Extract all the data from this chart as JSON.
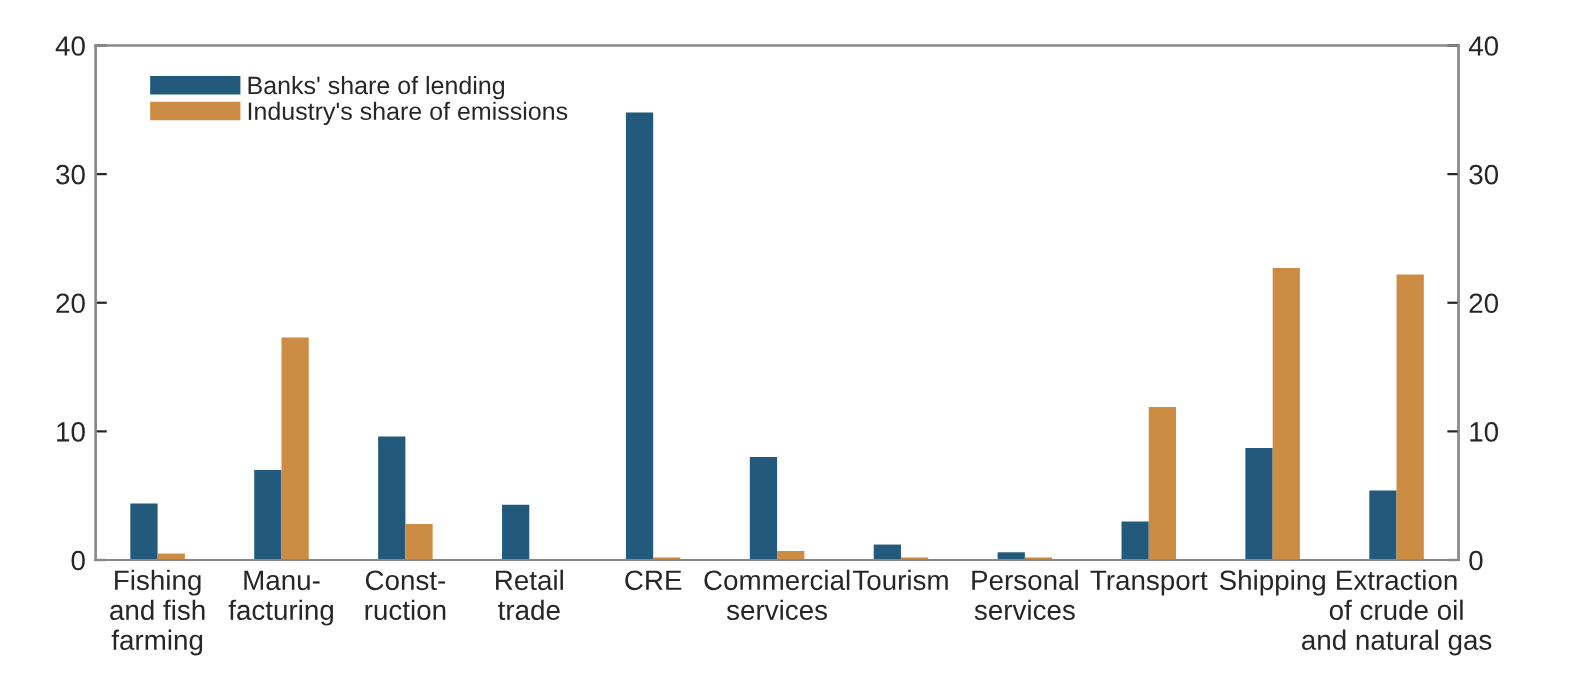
{
  "chart_data": {
    "type": "bar",
    "categories": [
      "Fishing\nand fish\nfarming",
      "Manu-\nfacturing",
      "Const-\nruction",
      "Retail\ntrade",
      "CRE",
      "Commercial\nservices",
      "Tourism",
      "Personal\nservices",
      "Transport",
      "Shipping",
      "Extraction\nof crude oil\nand natural gas"
    ],
    "series": [
      {
        "name": "Banks' share of lending",
        "color": "#235a7b",
        "values": [
          4.4,
          7.0,
          9.6,
          4.3,
          34.8,
          8.0,
          1.2,
          0.6,
          3.0,
          8.7,
          5.4
        ]
      },
      {
        "name": "Industry's share of emissions",
        "color": "#cd8c44",
        "values": [
          0.5,
          17.3,
          2.8,
          0.0,
          0.2,
          0.7,
          0.2,
          0.2,
          11.9,
          22.7,
          22.2
        ]
      }
    ],
    "ylim": [
      0,
      40
    ],
    "yticks": [
      0,
      10,
      20,
      30,
      40
    ],
    "y2lim": [
      0,
      40
    ],
    "y2ticks": [
      0,
      10,
      20,
      30,
      40
    ],
    "legend": "top left",
    "grid": false
  }
}
